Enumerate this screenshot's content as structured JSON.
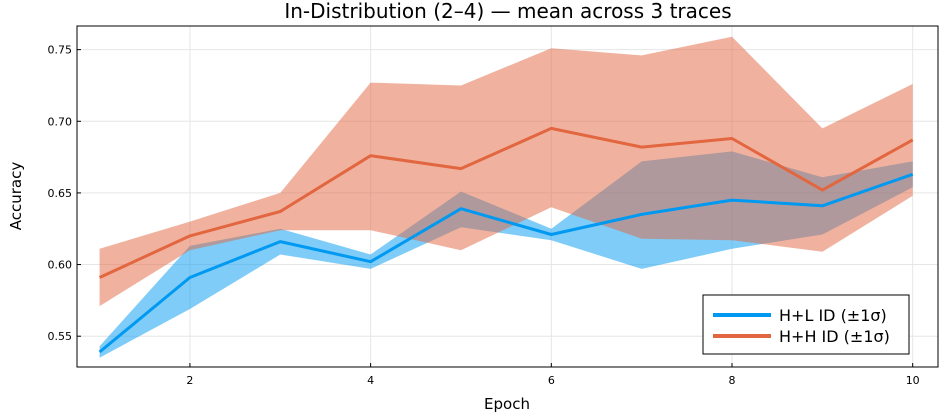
{
  "chart_data": {
    "type": "line",
    "title": "In-Distribution (2–4) — mean across 3 traces",
    "xlabel": "Epoch",
    "ylabel": "Accuracy",
    "xlim": [
      0.75,
      10.28
    ],
    "ylim": [
      0.5285,
      0.7665
    ],
    "x_ticks": [
      2,
      4,
      6,
      8,
      10
    ],
    "y_ticks": [
      0.55,
      0.6,
      0.65,
      0.7,
      0.75
    ],
    "x_tick_labels": [
      "2",
      "4",
      "6",
      "8",
      "10"
    ],
    "y_tick_labels": [
      "0.55",
      "0.60",
      "0.65",
      "0.70",
      "0.75"
    ],
    "grid": true,
    "legend_position": "bottom-right",
    "x": [
      1,
      2,
      3,
      4,
      5,
      6,
      7,
      8,
      9,
      10
    ],
    "series": [
      {
        "name": "H+L ID (±1σ)",
        "color": "#0099f1",
        "band_color": "#0099f1",
        "values": [
          0.539,
          0.591,
          0.616,
          0.602,
          0.639,
          0.621,
          0.635,
          0.645,
          0.641,
          0.663
        ],
        "lower": [
          0.535,
          0.569,
          0.607,
          0.597,
          0.626,
          0.617,
          0.597,
          0.611,
          0.621,
          0.654
        ],
        "upper": [
          0.543,
          0.613,
          0.625,
          0.607,
          0.651,
          0.625,
          0.672,
          0.679,
          0.661,
          0.672
        ]
      },
      {
        "name": "H+H ID (±1σ)",
        "color": "#e2663f",
        "band_color": "#e2663f",
        "values": [
          0.591,
          0.62,
          0.637,
          0.676,
          0.667,
          0.695,
          0.682,
          0.688,
          0.652,
          0.687
        ],
        "lower": [
          0.571,
          0.61,
          0.624,
          0.624,
          0.61,
          0.64,
          0.618,
          0.617,
          0.609,
          0.648
        ],
        "upper": [
          0.611,
          0.63,
          0.65,
          0.727,
          0.725,
          0.751,
          0.746,
          0.759,
          0.695,
          0.726
        ]
      }
    ]
  }
}
